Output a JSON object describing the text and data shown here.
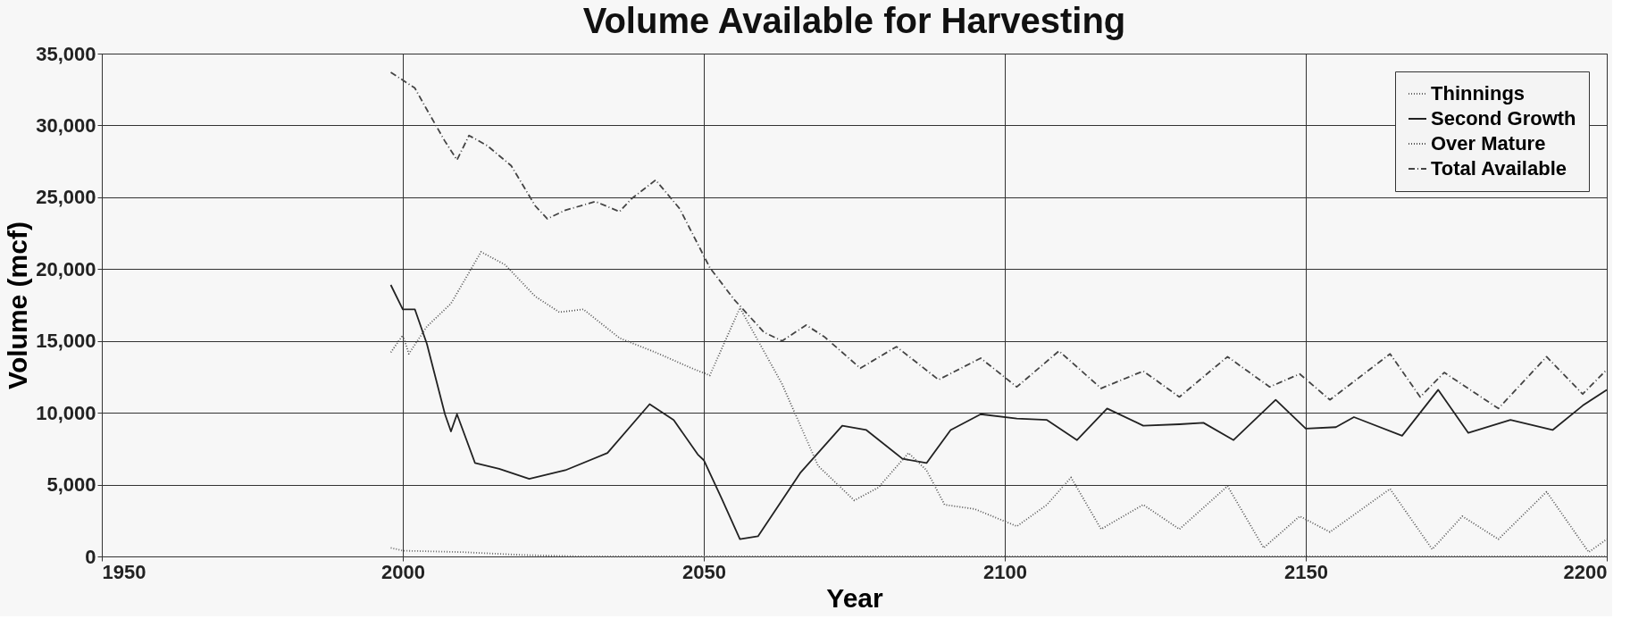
{
  "chart_data": {
    "type": "line",
    "title": "Volume Available for Harvesting",
    "xlabel": "Year",
    "ylabel": "Volume (mcf)",
    "xlim": [
      1950,
      2200
    ],
    "xticks": [
      1950,
      2000,
      2050,
      2100,
      2150,
      2200
    ],
    "ylim": [
      0,
      35000
    ],
    "yticks": [
      {
        "value": 0,
        "label": "0"
      },
      {
        "value": 5000,
        "label": "5,000"
      },
      {
        "value": 10000,
        "label": "10,000"
      },
      {
        "value": 15000,
        "label": "15,000"
      },
      {
        "value": 20000,
        "label": "20,000"
      },
      {
        "value": 25000,
        "label": "25,000"
      },
      {
        "value": 30000,
        "label": "30,000"
      },
      {
        "value": 35000,
        "label": "35,000"
      }
    ],
    "grid": true,
    "legend": "top right",
    "series": [
      {
        "name": "Thinnings",
        "color": "#666666",
        "line_style": "dotted",
        "x": [
          1998,
          2000,
          2005,
          2010,
          2015,
          2020,
          2030,
          2050,
          2100,
          2150,
          2200
        ],
        "values": [
          600,
          400,
          350,
          300,
          200,
          100,
          0,
          0,
          0,
          0,
          0
        ]
      },
      {
        "name": "Second Growth",
        "color": "#222222",
        "line_style": "solid",
        "x": [
          1998,
          2000,
          2002,
          2004,
          2007,
          2008,
          2009,
          2012,
          2016,
          2021,
          2023,
          2027,
          2034,
          2041,
          2045,
          2049,
          2050,
          2053,
          2056,
          2059,
          2066,
          2073,
          2077,
          2083,
          2087,
          2091,
          2096,
          2102,
          2107,
          2112,
          2117,
          2123,
          2129,
          2133,
          2138,
          2145,
          2150,
          2155,
          2158,
          2166,
          2172,
          2177,
          2184,
          2191,
          2196,
          2200
        ],
        "values": [
          18900,
          17200,
          17200,
          14800,
          9900,
          8700,
          9900,
          6500,
          6100,
          5400,
          5600,
          6000,
          7200,
          10600,
          9500,
          7100,
          6700,
          4000,
          1200,
          1400,
          5800,
          9100,
          8800,
          6800,
          6500,
          8800,
          9900,
          9600,
          9500,
          8100,
          10300,
          9100,
          9200,
          9300,
          8100,
          10900,
          8900,
          9000,
          9700,
          8400,
          11600,
          8600,
          9500,
          8800,
          10500,
          11600
        ]
      },
      {
        "name": "Over Mature",
        "color": "#555555",
        "line_style": "dotted",
        "x": [
          1998,
          2000,
          2001,
          2004,
          2008,
          2013,
          2017,
          2022,
          2026,
          2030,
          2036,
          2042,
          2048,
          2051,
          2056,
          2063,
          2069,
          2075,
          2079,
          2084,
          2087,
          2090,
          2095,
          2102,
          2107,
          2111,
          2116,
          2123,
          2129,
          2137,
          2143,
          2149,
          2154,
          2164,
          2171,
          2176,
          2182,
          2190,
          2197,
          2200
        ],
        "values": [
          14200,
          15400,
          14100,
          16000,
          17600,
          21200,
          20300,
          18100,
          17000,
          17200,
          15200,
          14200,
          13100,
          12600,
          17300,
          12000,
          6300,
          3900,
          4800,
          7200,
          6000,
          3600,
          3300,
          2100,
          3600,
          5500,
          1900,
          3600,
          1900,
          4900,
          600,
          2800,
          1700,
          4700,
          500,
          2800,
          1200,
          4500,
          300,
          1200
        ]
      },
      {
        "name": "Total Available",
        "color": "#444444",
        "line_style": "dashed",
        "x": [
          1998,
          2002,
          2004,
          2007,
          2009,
          2011,
          2014,
          2018,
          2022,
          2024,
          2027,
          2032,
          2036,
          2038,
          2042,
          2046,
          2051,
          2055,
          2060,
          2063,
          2067,
          2070,
          2076,
          2082,
          2089,
          2096,
          2102,
          2109,
          2116,
          2123,
          2129,
          2137,
          2144,
          2149,
          2154,
          2164,
          2169,
          2173,
          2182,
          2190,
          2196,
          2200
        ],
        "values": [
          33700,
          32600,
          31100,
          28900,
          27600,
          29300,
          28600,
          27200,
          24400,
          23500,
          24100,
          24700,
          24000,
          24900,
          26200,
          24200,
          20100,
          17900,
          15600,
          15000,
          16100,
          15300,
          13100,
          14600,
          12300,
          13800,
          11800,
          14300,
          11700,
          12900,
          11100,
          13900,
          11800,
          12700,
          10900,
          14100,
          11100,
          12800,
          10300,
          13900,
          11300,
          13000
        ]
      }
    ]
  }
}
